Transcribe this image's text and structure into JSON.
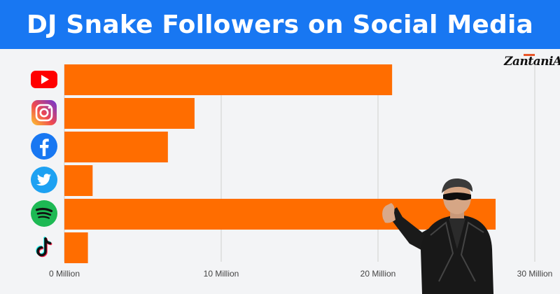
{
  "header": {
    "title": "DJ Snake Followers on Social Media"
  },
  "brand": {
    "logo_text": "ZantaniA"
  },
  "colors": {
    "banner": "#1877f2",
    "bar": "#ff6d00",
    "grid": "#cfcfcf",
    "background": "#f3f4f6"
  },
  "chart_data": {
    "type": "bar",
    "orientation": "horizontal",
    "title": "DJ Snake Followers on Social Media",
    "categories": [
      "YouTube",
      "Instagram",
      "Facebook",
      "Twitter",
      "Spotify",
      "TikTok"
    ],
    "category_icons": [
      "youtube-icon",
      "instagram-icon",
      "facebook-icon",
      "twitter-icon",
      "spotify-icon",
      "tiktok-icon"
    ],
    "values": [
      20.9,
      8.3,
      6.6,
      1.8,
      27.5,
      1.5
    ],
    "unit": "Million",
    "xlim": [
      0,
      30
    ],
    "xticks": [
      0,
      10,
      20,
      30
    ],
    "xtick_labels": [
      "0 Million",
      "10 Million",
      "20 Million",
      "30 Million"
    ],
    "grid": true
  }
}
